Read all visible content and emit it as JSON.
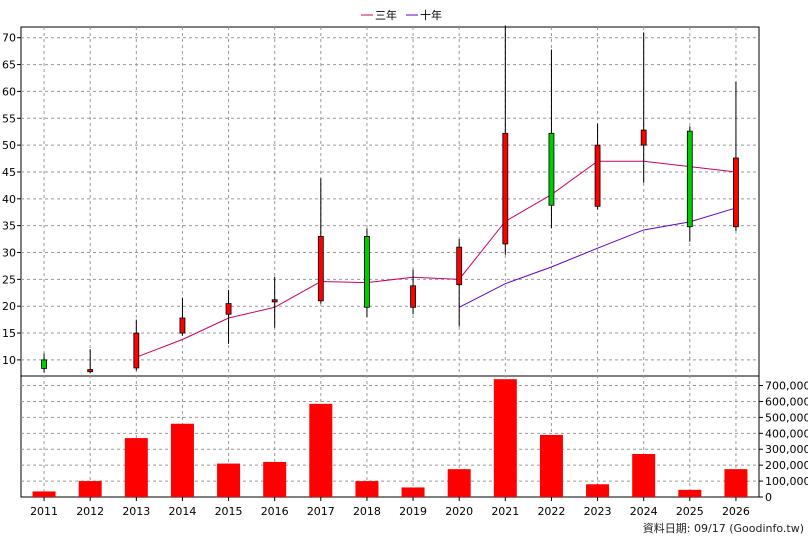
{
  "legend": {
    "ma3_label": "三年",
    "ma10_label": "十年",
    "ma3_color": "#cc0066",
    "ma10_color": "#6600cc"
  },
  "footer": {
    "text": "資料日期: 09/17  (Goodinfo.tw)"
  },
  "chart_data": {
    "type": "candlestick-with-volume",
    "categories": [
      "2011",
      "2012",
      "2013",
      "2014",
      "2015",
      "2016",
      "2017",
      "2018",
      "2019",
      "2020",
      "2021",
      "2022",
      "2023",
      "2024",
      "2025",
      "2026"
    ],
    "price_axis": {
      "ylim": [
        7,
        72
      ],
      "ticks": [
        10,
        15,
        20,
        25,
        30,
        35,
        40,
        45,
        50,
        55,
        60,
        65,
        70
      ],
      "grid": true
    },
    "volume_axis": {
      "ylim": [
        0,
        760000
      ],
      "ticks": [
        0,
        100000,
        200000,
        300000,
        400000,
        500000,
        600000,
        700000
      ],
      "tick_labels": [
        "0",
        "100,000",
        "200,000",
        "300,000",
        "400,000",
        "500,000",
        "600,000",
        "700,000"
      ],
      "grid": true
    },
    "candles": [
      {
        "year": "2011",
        "open": 10.0,
        "close": 8.4,
        "high": 11.2,
        "low": 7.6
      },
      {
        "year": "2012",
        "open": 7.8,
        "close": 8.2,
        "high": 12.0,
        "low": 7.5
      },
      {
        "year": "2013",
        "open": 8.5,
        "close": 15.0,
        "high": 17.5,
        "low": 8.0
      },
      {
        "year": "2014",
        "open": 15.0,
        "close": 17.8,
        "high": 21.5,
        "low": 14.5
      },
      {
        "year": "2015",
        "open": 18.5,
        "close": 20.5,
        "high": 23.0,
        "low": 13.0
      },
      {
        "year": "2016",
        "open": 20.8,
        "close": 21.2,
        "high": 25.5,
        "low": 16.0
      },
      {
        "year": "2017",
        "open": 21.0,
        "close": 33.0,
        "high": 43.8,
        "low": 20.5
      },
      {
        "year": "2018",
        "open": 33.0,
        "close": 19.8,
        "high": 34.5,
        "low": 18.0
      },
      {
        "year": "2019",
        "open": 19.8,
        "close": 23.8,
        "high": 26.8,
        "low": 18.5
      },
      {
        "year": "2020",
        "open": 24.0,
        "close": 31.0,
        "high": 32.5,
        "low": 16.2
      },
      {
        "year": "2021",
        "open": 31.6,
        "close": 52.2,
        "high": 72.3,
        "low": 29.6
      },
      {
        "year": "2022",
        "open": 52.2,
        "close": 38.8,
        "high": 67.8,
        "low": 34.5
      },
      {
        "year": "2023",
        "open": 38.6,
        "close": 50.0,
        "high": 54.0,
        "low": 38.0
      },
      {
        "year": "2024",
        "open": 50.0,
        "close": 52.8,
        "high": 71.0,
        "low": 43.0
      },
      {
        "year": "2025",
        "open": 52.6,
        "close": 34.8,
        "high": 53.5,
        "low": 32.0
      },
      {
        "year": "2026",
        "open": 34.8,
        "close": 47.6,
        "high": 61.8,
        "low": 34.0
      }
    ],
    "series": [
      {
        "name": "三年",
        "values": [
          null,
          null,
          10.5,
          13.8,
          17.8,
          19.8,
          24.6,
          24.4,
          25.4,
          25.0,
          35.8,
          40.8,
          47.0,
          47.0,
          46.0,
          45.0
        ]
      },
      {
        "name": "十年",
        "values": [
          null,
          null,
          null,
          null,
          null,
          null,
          null,
          null,
          null,
          19.8,
          24.2,
          27.3,
          30.8,
          34.2,
          35.7,
          38.3
        ]
      }
    ],
    "volume": [
      35000,
      100000,
      370000,
      460000,
      210000,
      220000,
      585000,
      100000,
      60000,
      175000,
      740000,
      390000,
      80000,
      270000,
      45000,
      175000
    ]
  }
}
